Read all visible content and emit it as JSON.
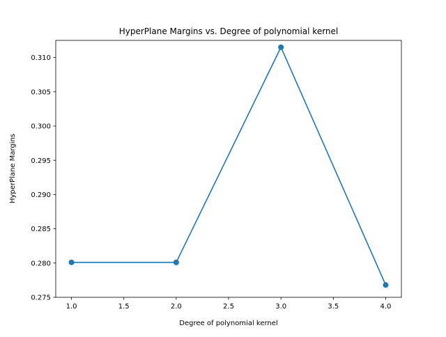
{
  "chart_data": {
    "type": "line",
    "title": "HyperPlane Margins vs. Degree of polynomial kernel",
    "xlabel": "Degree of polynomial kernel",
    "ylabel": "HyperPlane Margins",
    "x": [
      1.0,
      2.0,
      3.0,
      4.0
    ],
    "series": [
      {
        "values": [
          0.2801,
          0.2801,
          0.3115,
          0.2768
        ]
      }
    ],
    "xlim": [
      0.85,
      4.15
    ],
    "ylim": [
      0.275,
      0.3125
    ],
    "xticks": [
      "1.0",
      "1.5",
      "2.0",
      "2.5",
      "3.0",
      "3.5",
      "4.0"
    ],
    "yticks": [
      "0.275",
      "0.280",
      "0.285",
      "0.290",
      "0.295",
      "0.300",
      "0.305",
      "0.310"
    ],
    "grid": false,
    "marker": "circle",
    "line_color": "#1f77b4"
  }
}
